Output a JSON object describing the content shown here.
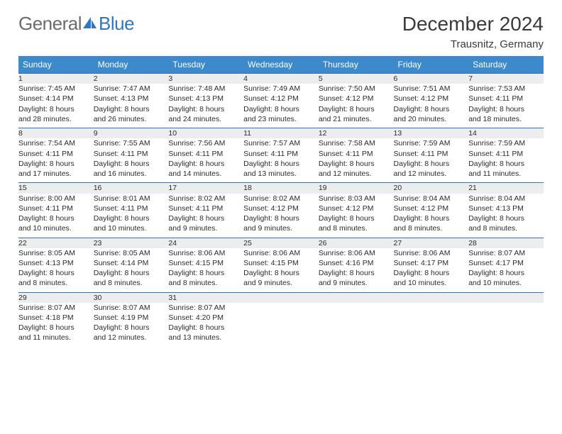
{
  "brand": {
    "part1": "General",
    "part2": "Blue"
  },
  "title": "December 2024",
  "location": "Trausnitz, Germany",
  "colors": {
    "header_bg": "#3c8acb",
    "header_text": "#ffffff",
    "daynum_bg": "#ecedee",
    "day_border": "#2f78bf",
    "logo_gray": "#6b6b6b",
    "logo_blue": "#2f78bf",
    "text": "#2b2b2b"
  },
  "weekdays": [
    "Sunday",
    "Monday",
    "Tuesday",
    "Wednesday",
    "Thursday",
    "Friday",
    "Saturday"
  ],
  "weeks": [
    [
      {
        "n": "1",
        "sr": "Sunrise: 7:45 AM",
        "ss": "Sunset: 4:14 PM",
        "d1": "Daylight: 8 hours",
        "d2": "and 28 minutes."
      },
      {
        "n": "2",
        "sr": "Sunrise: 7:47 AM",
        "ss": "Sunset: 4:13 PM",
        "d1": "Daylight: 8 hours",
        "d2": "and 26 minutes."
      },
      {
        "n": "3",
        "sr": "Sunrise: 7:48 AM",
        "ss": "Sunset: 4:13 PM",
        "d1": "Daylight: 8 hours",
        "d2": "and 24 minutes."
      },
      {
        "n": "4",
        "sr": "Sunrise: 7:49 AM",
        "ss": "Sunset: 4:12 PM",
        "d1": "Daylight: 8 hours",
        "d2": "and 23 minutes."
      },
      {
        "n": "5",
        "sr": "Sunrise: 7:50 AM",
        "ss": "Sunset: 4:12 PM",
        "d1": "Daylight: 8 hours",
        "d2": "and 21 minutes."
      },
      {
        "n": "6",
        "sr": "Sunrise: 7:51 AM",
        "ss": "Sunset: 4:12 PM",
        "d1": "Daylight: 8 hours",
        "d2": "and 20 minutes."
      },
      {
        "n": "7",
        "sr": "Sunrise: 7:53 AM",
        "ss": "Sunset: 4:11 PM",
        "d1": "Daylight: 8 hours",
        "d2": "and 18 minutes."
      }
    ],
    [
      {
        "n": "8",
        "sr": "Sunrise: 7:54 AM",
        "ss": "Sunset: 4:11 PM",
        "d1": "Daylight: 8 hours",
        "d2": "and 17 minutes."
      },
      {
        "n": "9",
        "sr": "Sunrise: 7:55 AM",
        "ss": "Sunset: 4:11 PM",
        "d1": "Daylight: 8 hours",
        "d2": "and 16 minutes."
      },
      {
        "n": "10",
        "sr": "Sunrise: 7:56 AM",
        "ss": "Sunset: 4:11 PM",
        "d1": "Daylight: 8 hours",
        "d2": "and 14 minutes."
      },
      {
        "n": "11",
        "sr": "Sunrise: 7:57 AM",
        "ss": "Sunset: 4:11 PM",
        "d1": "Daylight: 8 hours",
        "d2": "and 13 minutes."
      },
      {
        "n": "12",
        "sr": "Sunrise: 7:58 AM",
        "ss": "Sunset: 4:11 PM",
        "d1": "Daylight: 8 hours",
        "d2": "and 12 minutes."
      },
      {
        "n": "13",
        "sr": "Sunrise: 7:59 AM",
        "ss": "Sunset: 4:11 PM",
        "d1": "Daylight: 8 hours",
        "d2": "and 12 minutes."
      },
      {
        "n": "14",
        "sr": "Sunrise: 7:59 AM",
        "ss": "Sunset: 4:11 PM",
        "d1": "Daylight: 8 hours",
        "d2": "and 11 minutes."
      }
    ],
    [
      {
        "n": "15",
        "sr": "Sunrise: 8:00 AM",
        "ss": "Sunset: 4:11 PM",
        "d1": "Daylight: 8 hours",
        "d2": "and 10 minutes."
      },
      {
        "n": "16",
        "sr": "Sunrise: 8:01 AM",
        "ss": "Sunset: 4:11 PM",
        "d1": "Daylight: 8 hours",
        "d2": "and 10 minutes."
      },
      {
        "n": "17",
        "sr": "Sunrise: 8:02 AM",
        "ss": "Sunset: 4:11 PM",
        "d1": "Daylight: 8 hours",
        "d2": "and 9 minutes."
      },
      {
        "n": "18",
        "sr": "Sunrise: 8:02 AM",
        "ss": "Sunset: 4:12 PM",
        "d1": "Daylight: 8 hours",
        "d2": "and 9 minutes."
      },
      {
        "n": "19",
        "sr": "Sunrise: 8:03 AM",
        "ss": "Sunset: 4:12 PM",
        "d1": "Daylight: 8 hours",
        "d2": "and 8 minutes."
      },
      {
        "n": "20",
        "sr": "Sunrise: 8:04 AM",
        "ss": "Sunset: 4:12 PM",
        "d1": "Daylight: 8 hours",
        "d2": "and 8 minutes."
      },
      {
        "n": "21",
        "sr": "Sunrise: 8:04 AM",
        "ss": "Sunset: 4:13 PM",
        "d1": "Daylight: 8 hours",
        "d2": "and 8 minutes."
      }
    ],
    [
      {
        "n": "22",
        "sr": "Sunrise: 8:05 AM",
        "ss": "Sunset: 4:13 PM",
        "d1": "Daylight: 8 hours",
        "d2": "and 8 minutes."
      },
      {
        "n": "23",
        "sr": "Sunrise: 8:05 AM",
        "ss": "Sunset: 4:14 PM",
        "d1": "Daylight: 8 hours",
        "d2": "and 8 minutes."
      },
      {
        "n": "24",
        "sr": "Sunrise: 8:06 AM",
        "ss": "Sunset: 4:15 PM",
        "d1": "Daylight: 8 hours",
        "d2": "and 8 minutes."
      },
      {
        "n": "25",
        "sr": "Sunrise: 8:06 AM",
        "ss": "Sunset: 4:15 PM",
        "d1": "Daylight: 8 hours",
        "d2": "and 9 minutes."
      },
      {
        "n": "26",
        "sr": "Sunrise: 8:06 AM",
        "ss": "Sunset: 4:16 PM",
        "d1": "Daylight: 8 hours",
        "d2": "and 9 minutes."
      },
      {
        "n": "27",
        "sr": "Sunrise: 8:06 AM",
        "ss": "Sunset: 4:17 PM",
        "d1": "Daylight: 8 hours",
        "d2": "and 10 minutes."
      },
      {
        "n": "28",
        "sr": "Sunrise: 8:07 AM",
        "ss": "Sunset: 4:17 PM",
        "d1": "Daylight: 8 hours",
        "d2": "and 10 minutes."
      }
    ],
    [
      {
        "n": "29",
        "sr": "Sunrise: 8:07 AM",
        "ss": "Sunset: 4:18 PM",
        "d1": "Daylight: 8 hours",
        "d2": "and 11 minutes."
      },
      {
        "n": "30",
        "sr": "Sunrise: 8:07 AM",
        "ss": "Sunset: 4:19 PM",
        "d1": "Daylight: 8 hours",
        "d2": "and 12 minutes."
      },
      {
        "n": "31",
        "sr": "Sunrise: 8:07 AM",
        "ss": "Sunset: 4:20 PM",
        "d1": "Daylight: 8 hours",
        "d2": "and 13 minutes."
      },
      null,
      null,
      null,
      null
    ]
  ]
}
